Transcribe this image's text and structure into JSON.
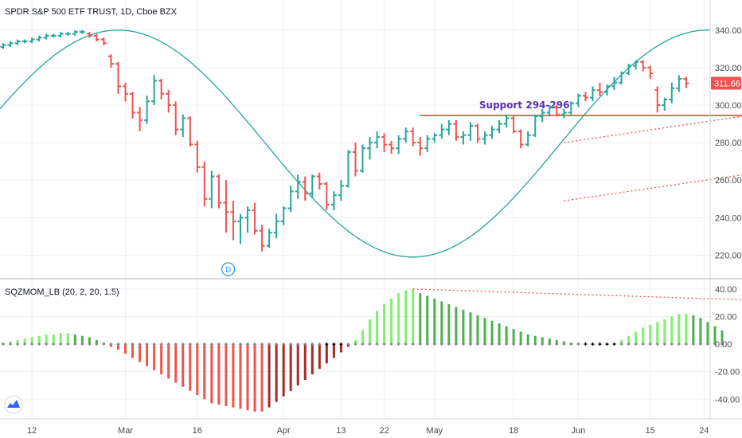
{
  "title": "SPDR S&P 500 ETF TRUST, 1D, Cboe BZX",
  "colors": {
    "up": "#26a69a",
    "down": "#ef5350",
    "support": "#f44336",
    "channel": "#ef5350",
    "sine": "#26a69a",
    "mom_pos_strong": "#7ef26b",
    "mom_pos_weak": "#4caf50",
    "mom_neg_strong": "#ef5350",
    "mom_neg_weak": "#a52a2a",
    "annotation": "#5b2fb5",
    "grid": "#eef0f3",
    "axis_text": "#4a4a4a"
  },
  "chart_data": [
    {
      "type": "bar",
      "subtype": "ohlc",
      "title": "SPDR S&P 500 ETF TRUST, 1D, Cboe BZX",
      "ylim": [
        210,
        345
      ],
      "y_ticks": [
        220.0,
        240.0,
        260.0,
        280.0,
        300.0,
        320.0,
        340.0
      ],
      "x_tick_labels": [
        "12",
        "Mar",
        "16",
        "Apr",
        "13",
        "22",
        "May",
        "18",
        "Jun",
        "15",
        "24"
      ],
      "last_price_label": "311.66",
      "last_price": 311.66,
      "annotation": {
        "text": "Support 294-296",
        "level": 294.5
      },
      "marker_label": "D",
      "ohlc": [
        [
          331,
          333,
          330,
          332
        ],
        [
          332,
          334,
          331,
          333
        ],
        [
          333,
          335,
          332,
          334
        ],
        [
          334,
          335,
          333,
          334
        ],
        [
          334,
          336,
          333,
          335
        ],
        [
          335,
          337,
          334,
          336
        ],
        [
          336,
          338,
          335,
          337
        ],
        [
          337,
          338,
          336,
          337
        ],
        [
          337,
          339,
          336,
          338
        ],
        [
          338,
          339,
          337,
          338
        ],
        [
          338,
          340,
          337,
          339
        ],
        [
          339,
          340,
          338,
          339
        ],
        [
          338,
          339,
          336,
          337
        ],
        [
          337,
          338,
          334,
          335
        ],
        [
          335,
          336,
          332,
          333
        ],
        [
          326,
          327,
          320,
          322
        ],
        [
          322,
          323,
          306,
          310
        ],
        [
          310,
          312,
          302,
          306
        ],
        [
          306,
          307,
          293,
          296
        ],
        [
          296,
          299,
          286,
          292
        ],
        [
          292,
          305,
          290,
          302
        ],
        [
          302,
          316,
          300,
          313
        ],
        [
          313,
          314,
          303,
          306
        ],
        [
          306,
          308,
          296,
          300
        ],
        [
          300,
          302,
          284,
          287
        ],
        [
          287,
          295,
          283,
          293
        ],
        [
          293,
          294,
          278,
          279
        ],
        [
          279,
          281,
          264,
          267
        ],
        [
          267,
          270,
          246,
          250
        ],
        [
          250,
          265,
          245,
          262
        ],
        [
          262,
          263,
          245,
          248
        ],
        [
          248,
          260,
          232,
          243
        ],
        [
          243,
          249,
          228,
          238
        ],
        [
          238,
          242,
          226,
          240
        ],
        [
          240,
          246,
          232,
          244
        ],
        [
          244,
          248,
          231,
          233
        ],
        [
          233,
          236,
          222,
          225
        ],
        [
          225,
          234,
          224,
          232
        ],
        [
          232,
          242,
          229,
          238
        ],
        [
          238,
          246,
          236,
          245
        ],
        [
          245,
          257,
          243,
          254
        ],
        [
          254,
          263,
          250,
          259
        ],
        [
          259,
          262,
          249,
          253
        ],
        [
          253,
          263,
          251,
          262
        ],
        [
          262,
          264,
          255,
          258
        ],
        [
          258,
          259,
          244,
          247
        ],
        [
          247,
          254,
          244,
          252
        ],
        [
          252,
          260,
          249,
          257
        ],
        [
          257,
          276,
          256,
          275
        ],
        [
          275,
          280,
          262,
          265
        ],
        [
          265,
          279,
          264,
          277
        ],
        [
          277,
          283,
          271,
          280
        ],
        [
          280,
          286,
          277,
          283
        ],
        [
          283,
          285,
          275,
          279
        ],
        [
          279,
          281,
          274,
          277
        ],
        [
          277,
          284,
          274,
          282
        ],
        [
          282,
          288,
          280,
          286
        ],
        [
          286,
          288,
          278,
          280
        ],
        [
          280,
          283,
          273,
          277
        ],
        [
          277,
          284,
          275,
          282
        ],
        [
          282,
          285,
          280,
          284
        ],
        [
          284,
          290,
          282,
          287
        ],
        [
          287,
          292,
          284,
          290
        ],
        [
          290,
          292,
          281,
          283
        ],
        [
          283,
          286,
          279,
          284
        ],
        [
          284,
          291,
          281,
          289
        ],
        [
          289,
          290,
          280,
          282
        ],
        [
          282,
          286,
          279,
          284
        ],
        [
          284,
          289,
          282,
          287
        ],
        [
          287,
          292,
          285,
          290
        ],
        [
          290,
          295,
          288,
          293
        ],
        [
          293,
          294,
          285,
          286
        ],
        [
          286,
          287,
          277,
          279
        ],
        [
          279,
          286,
          278,
          284
        ],
        [
          284,
          295,
          283,
          294
        ],
        [
          294,
          298,
          291,
          296
        ],
        [
          296,
          300,
          294,
          299
        ],
        [
          299,
          300,
          294,
          295
        ],
        [
          295,
          298,
          293,
          296
        ],
        [
          296,
          302,
          295,
          301
        ],
        [
          301,
          306,
          299,
          305
        ],
        [
          305,
          307,
          302,
          304
        ],
        [
          304,
          310,
          302,
          308
        ],
        [
          308,
          312,
          305,
          307
        ],
        [
          307,
          311,
          305,
          310
        ],
        [
          310,
          315,
          308,
          312
        ],
        [
          312,
          318,
          311,
          317
        ],
        [
          317,
          322,
          316,
          321
        ],
        [
          321,
          324,
          319,
          323
        ],
        [
          323,
          324,
          318,
          320
        ],
        [
          320,
          321,
          314,
          317
        ],
        [
          308,
          310,
          296,
          300
        ],
        [
          300,
          304,
          297,
          303
        ],
        [
          303,
          312,
          301,
          309
        ],
        [
          309,
          316,
          307,
          314
        ],
        [
          314,
          315,
          309,
          311.66
        ]
      ],
      "support_line": {
        "x_start": 58,
        "x_end": 173,
        "value": 294.5
      },
      "channel_upper": {
        "x_start": 78,
        "y_start": 280,
        "x_end": 177,
        "y_end": 336
      },
      "channel_lower": {
        "x_start": 78,
        "y_start": 249,
        "x_end": 177,
        "y_end": 304
      },
      "sine_wave": {
        "amplitude": 60.5,
        "center": 279.5,
        "period": 82,
        "peak_x": 16
      }
    },
    {
      "type": "bar",
      "title": "SQZMOM_LB (20, 2, 20, 1.5)",
      "ylim": [
        -52,
        44
      ],
      "y_ticks": [
        -40.0,
        -20.0,
        0.0,
        20.0,
        40.0
      ],
      "values": [
        1,
        2,
        3,
        4,
        5,
        6,
        7,
        7,
        8,
        8,
        7,
        6,
        5,
        3,
        1,
        -2,
        -4,
        -7,
        -10,
        -13,
        -16,
        -19,
        -22,
        -25,
        -28,
        -31,
        -34,
        -37,
        -40,
        -43,
        -44,
        -45,
        -46,
        -47,
        -48,
        -49,
        -49,
        -46,
        -42,
        -38,
        -34,
        -30,
        -26,
        -22,
        -18,
        -14,
        -10,
        -6,
        -2,
        3,
        10,
        18,
        24,
        29,
        33,
        37,
        39,
        40,
        37,
        35,
        33,
        31,
        29,
        27,
        25,
        23,
        21,
        19,
        17,
        15,
        13,
        11,
        9,
        7,
        6,
        5,
        4,
        3,
        2,
        1,
        0.6,
        0.4,
        0.2,
        0.1,
        0.05,
        0.5,
        3,
        6,
        9,
        12,
        14,
        16,
        18,
        20,
        22,
        22,
        21,
        19,
        16,
        13,
        10
      ],
      "squeeze_dots": "on",
      "divergence_line": {
        "x_start": 57,
        "y_start": 40,
        "x_end": 180,
        "y_end": 19
      }
    }
  ]
}
